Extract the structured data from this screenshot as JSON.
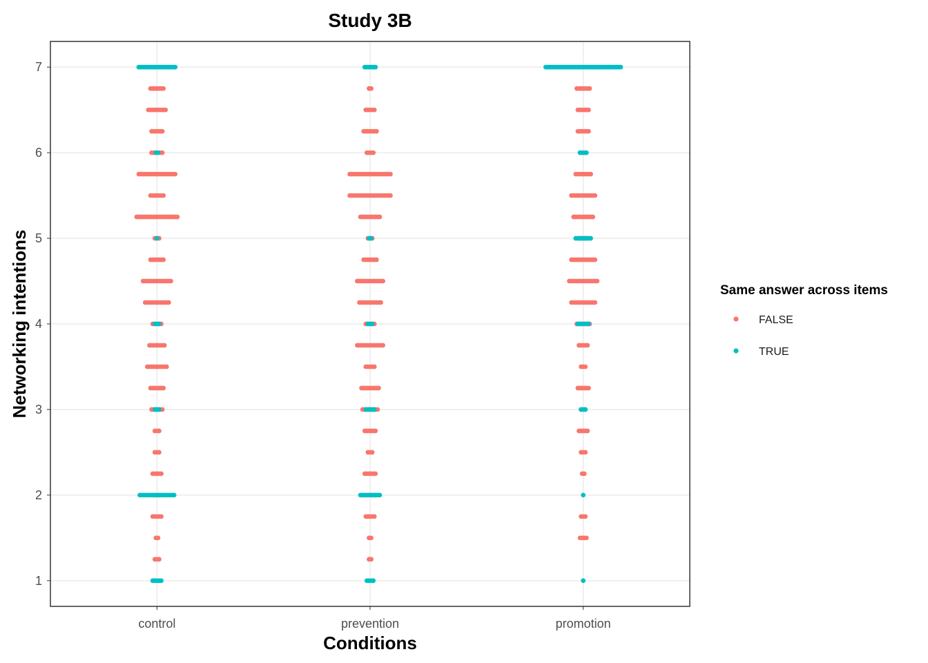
{
  "chart_data": {
    "type": "scatter",
    "title": "Study 3B",
    "xlabel": "Conditions",
    "ylabel": "Networking intentions",
    "categories": [
      "control",
      "prevention",
      "promotion"
    ],
    "y_ticks": [
      1,
      2,
      3,
      4,
      5,
      6,
      7
    ],
    "ylim": [
      0.7,
      7.3
    ],
    "grid": true,
    "legend": {
      "title": "Same answer across items",
      "placement": "right",
      "entries": [
        {
          "label": "FALSE",
          "color": "#F8766D"
        },
        {
          "label": "TRUE",
          "color": "#00BFC4"
        }
      ]
    },
    "series": [
      {
        "name": "FALSE",
        "color": "#F8766D",
        "points": [
          {
            "x": "control",
            "y": 6.75,
            "count": 7
          },
          {
            "x": "control",
            "y": 6.5,
            "count": 9
          },
          {
            "x": "control",
            "y": 6.25,
            "count": 6
          },
          {
            "x": "control",
            "y": 6.0,
            "count": 6
          },
          {
            "x": "control",
            "y": 5.75,
            "count": 18
          },
          {
            "x": "control",
            "y": 5.5,
            "count": 7
          },
          {
            "x": "control",
            "y": 5.25,
            "count": 20
          },
          {
            "x": "control",
            "y": 5.0,
            "count": 3
          },
          {
            "x": "control",
            "y": 4.75,
            "count": 7
          },
          {
            "x": "control",
            "y": 4.5,
            "count": 14
          },
          {
            "x": "control",
            "y": 4.25,
            "count": 12
          },
          {
            "x": "control",
            "y": 4.0,
            "count": 5
          },
          {
            "x": "control",
            "y": 3.75,
            "count": 8
          },
          {
            "x": "control",
            "y": 3.5,
            "count": 10
          },
          {
            "x": "control",
            "y": 3.25,
            "count": 7
          },
          {
            "x": "control",
            "y": 3.0,
            "count": 6
          },
          {
            "x": "control",
            "y": 2.75,
            "count": 3
          },
          {
            "x": "control",
            "y": 2.5,
            "count": 3
          },
          {
            "x": "control",
            "y": 2.25,
            "count": 5
          },
          {
            "x": "control",
            "y": 2.0,
            "count": 3
          },
          {
            "x": "control",
            "y": 1.75,
            "count": 5
          },
          {
            "x": "control",
            "y": 1.5,
            "count": 2
          },
          {
            "x": "control",
            "y": 1.25,
            "count": 3
          },
          {
            "x": "prevention",
            "y": 6.75,
            "count": 2
          },
          {
            "x": "prevention",
            "y": 6.5,
            "count": 5
          },
          {
            "x": "prevention",
            "y": 6.25,
            "count": 7
          },
          {
            "x": "prevention",
            "y": 6.0,
            "count": 4
          },
          {
            "x": "prevention",
            "y": 5.75,
            "count": 20
          },
          {
            "x": "prevention",
            "y": 5.5,
            "count": 20
          },
          {
            "x": "prevention",
            "y": 5.25,
            "count": 10
          },
          {
            "x": "prevention",
            "y": 5.0,
            "count": 3
          },
          {
            "x": "prevention",
            "y": 4.75,
            "count": 7
          },
          {
            "x": "prevention",
            "y": 4.5,
            "count": 13
          },
          {
            "x": "prevention",
            "y": 4.25,
            "count": 11
          },
          {
            "x": "prevention",
            "y": 4.0,
            "count": 5
          },
          {
            "x": "prevention",
            "y": 3.75,
            "count": 13
          },
          {
            "x": "prevention",
            "y": 3.5,
            "count": 5
          },
          {
            "x": "prevention",
            "y": 3.25,
            "count": 9
          },
          {
            "x": "prevention",
            "y": 3.0,
            "count": 8
          },
          {
            "x": "prevention",
            "y": 2.75,
            "count": 6
          },
          {
            "x": "prevention",
            "y": 2.5,
            "count": 3
          },
          {
            "x": "prevention",
            "y": 2.25,
            "count": 6
          },
          {
            "x": "prevention",
            "y": 2.0,
            "count": 8
          },
          {
            "x": "prevention",
            "y": 1.75,
            "count": 5
          },
          {
            "x": "prevention",
            "y": 1.5,
            "count": 2
          },
          {
            "x": "prevention",
            "y": 1.25,
            "count": 2
          },
          {
            "x": "promotion",
            "y": 6.75,
            "count": 7
          },
          {
            "x": "promotion",
            "y": 6.5,
            "count": 6
          },
          {
            "x": "promotion",
            "y": 6.25,
            "count": 6
          },
          {
            "x": "promotion",
            "y": 6.0,
            "count": 3
          },
          {
            "x": "promotion",
            "y": 5.75,
            "count": 8
          },
          {
            "x": "promotion",
            "y": 5.5,
            "count": 12
          },
          {
            "x": "promotion",
            "y": 5.25,
            "count": 10
          },
          {
            "x": "promotion",
            "y": 5.0,
            "count": 5
          },
          {
            "x": "promotion",
            "y": 4.75,
            "count": 12
          },
          {
            "x": "promotion",
            "y": 4.5,
            "count": 14
          },
          {
            "x": "promotion",
            "y": 4.25,
            "count": 12
          },
          {
            "x": "promotion",
            "y": 4.0,
            "count": 7
          },
          {
            "x": "promotion",
            "y": 3.75,
            "count": 5
          },
          {
            "x": "promotion",
            "y": 3.5,
            "count": 3
          },
          {
            "x": "promotion",
            "y": 3.25,
            "count": 6
          },
          {
            "x": "promotion",
            "y": 3.0,
            "count": 3
          },
          {
            "x": "promotion",
            "y": 2.75,
            "count": 5
          },
          {
            "x": "promotion",
            "y": 2.5,
            "count": 3
          },
          {
            "x": "promotion",
            "y": 2.25,
            "count": 2
          },
          {
            "x": "promotion",
            "y": 1.75,
            "count": 3
          },
          {
            "x": "promotion",
            "y": 1.5,
            "count": 4
          }
        ]
      },
      {
        "name": "TRUE",
        "color": "#00BFC4",
        "points": [
          {
            "x": "control",
            "y": 7.0,
            "count": 18
          },
          {
            "x": "control",
            "y": 6.0,
            "count": 2
          },
          {
            "x": "control",
            "y": 5.0,
            "count": 1
          },
          {
            "x": "control",
            "y": 4.0,
            "count": 3
          },
          {
            "x": "control",
            "y": 3.0,
            "count": 3
          },
          {
            "x": "control",
            "y": 2.0,
            "count": 17
          },
          {
            "x": "control",
            "y": 1.0,
            "count": 5
          },
          {
            "x": "prevention",
            "y": 7.0,
            "count": 6
          },
          {
            "x": "prevention",
            "y": 5.0,
            "count": 2
          },
          {
            "x": "prevention",
            "y": 4.0,
            "count": 3
          },
          {
            "x": "prevention",
            "y": 3.0,
            "count": 5
          },
          {
            "x": "prevention",
            "y": 2.0,
            "count": 10
          },
          {
            "x": "prevention",
            "y": 1.0,
            "count": 4
          },
          {
            "x": "promotion",
            "y": 7.0,
            "count": 36
          },
          {
            "x": "promotion",
            "y": 6.0,
            "count": 4
          },
          {
            "x": "promotion",
            "y": 5.0,
            "count": 8
          },
          {
            "x": "promotion",
            "y": 4.0,
            "count": 6
          },
          {
            "x": "promotion",
            "y": 3.0,
            "count": 3
          },
          {
            "x": "promotion",
            "y": 2.0,
            "count": 1
          },
          {
            "x": "promotion",
            "y": 1.0,
            "count": 1
          }
        ]
      }
    ]
  }
}
